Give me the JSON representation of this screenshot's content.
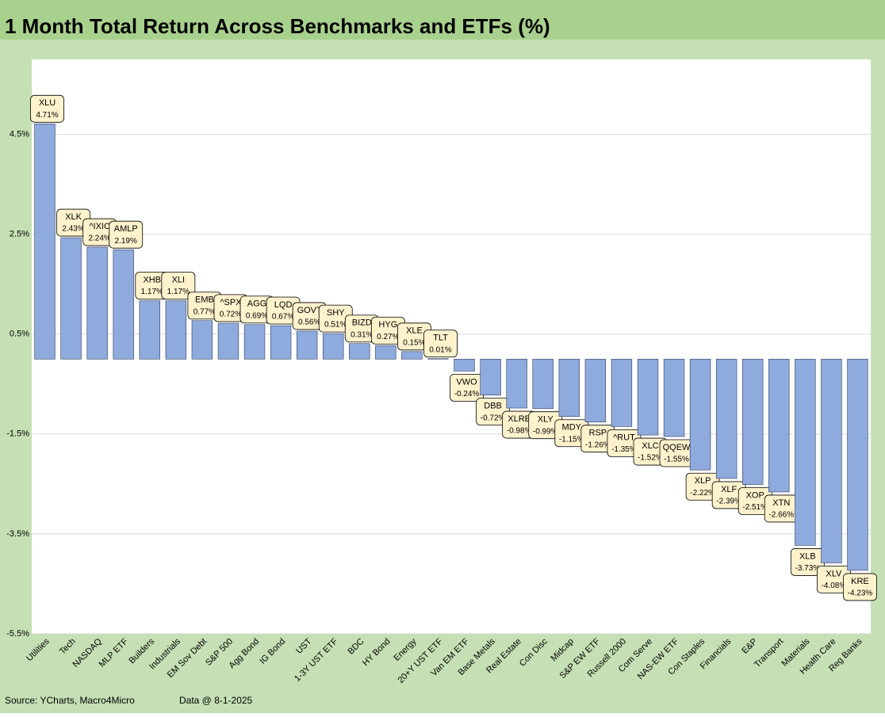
{
  "chart_data": {
    "type": "bar",
    "title": "1 Month Total Return Across Benchmarks and ETFs (%)",
    "categories": [
      "Utilities",
      "Tech",
      "NASDAQ",
      "MLP ETF",
      "Builders",
      "Industrials",
      "EM Sov Debt",
      "S&P 500",
      "Agg Bond",
      "IG Bond",
      "UST",
      "1-3Y UST ETF",
      "BDC",
      "HY Bond",
      "Energy",
      "20+Y UST ETF",
      "Van EM ETF",
      "Base Metals",
      "Real Estate",
      "Con Disc",
      "Midcap",
      "S&P EW ETF",
      "Russell 2000",
      "Com Serve",
      "NAS-EW ETF",
      "Con Staples",
      "Financials",
      "E&P",
      "Transport",
      "Materials",
      "Health Care",
      "Reg Banks"
    ],
    "tickers": [
      "XLU",
      "XLK",
      "^IXIC",
      "AMLP",
      "XHB",
      "XLI",
      "EMB",
      "^SPX",
      "AGG",
      "LQD",
      "GOVT",
      "SHY",
      "BIZD",
      "HYG",
      "XLE",
      "TLT",
      "VWO",
      "DBB",
      "XLRE",
      "XLY",
      "MDY",
      "RSP",
      "^RUT",
      "XLC",
      "QQEW",
      "XLP",
      "XLF",
      "XOP",
      "XTN",
      "XLB",
      "XLV",
      "KRE"
    ],
    "values": [
      4.71,
      2.43,
      2.24,
      2.19,
      1.17,
      1.17,
      0.77,
      0.72,
      0.69,
      0.67,
      0.56,
      0.51,
      0.31,
      0.27,
      0.15,
      0.01,
      -0.24,
      -0.72,
      -0.98,
      -0.99,
      -1.15,
      -1.26,
      -1.35,
      -1.52,
      -1.55,
      -2.22,
      -2.39,
      -2.51,
      -2.66,
      -3.73,
      -4.08,
      -4.23
    ],
    "value_labels": [
      "4.71%",
      "2.43%",
      "2.24%",
      "2.19%",
      "1.17%",
      "1.17%",
      "0.77%",
      "0.72%",
      "0.69%",
      "0.67%",
      "0.56%",
      "0.51%",
      "0.31%",
      "0.27%",
      "0.15%",
      "0.01%",
      "-0.24%",
      "-0.72%",
      "-0.98%",
      "-0.99%",
      "-1.15%",
      "-1.26%",
      "-1.35%",
      "-1.52%",
      "-1.55%",
      "-2.22%",
      "-2.39%",
      "-2.51%",
      "-2.66%",
      "-3.73%",
      "-4.08%",
      "-4.23%"
    ],
    "color": "#8faadc",
    "ylim": [
      -5.5,
      6.0
    ],
    "yticks": [
      {
        "value": 4.5,
        "label": "4.5%"
      },
      {
        "value": 2.5,
        "label": "2.5%"
      },
      {
        "value": 0.5,
        "label": "0.5%"
      },
      {
        "value": -1.5,
        "label": "-1.5%"
      },
      {
        "value": -3.5,
        "label": "-3.5%"
      },
      {
        "value": -5.5,
        "label": "-5.5%"
      }
    ],
    "grid": true,
    "source": "Source: YCharts, Macro4Micro",
    "data_date": "Data @ 8-1-2025"
  }
}
